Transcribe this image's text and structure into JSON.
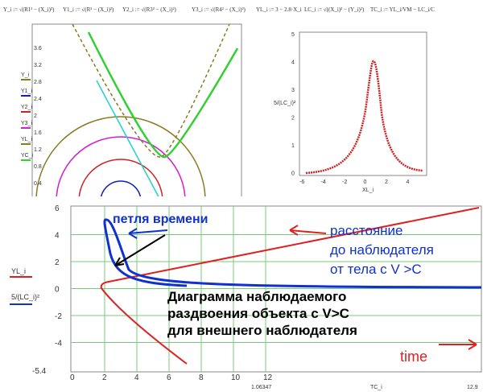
{
  "formulas": [
    "Y_i := √(R1² − (X_i)²)",
    "Y1_i := √(R² − (X_i)²)",
    "Y2_i := √(R3² − (X_i)²)",
    "Y3_i := √(R4² − (X_i)²)",
    "YL_i := 3 − 2.8·X_i",
    "LC_i := √((X_i)² − (Y_i)²)",
    "TC_i := YL_i/VM − LC_i/C"
  ],
  "plot1": {
    "yticks": [
      "3.6",
      "3.2",
      "2.8",
      "2.4",
      "2",
      "1.6",
      "1.2",
      "0.8",
      "0.4"
    ],
    "legend": [
      "Y_i",
      "Y1_i",
      "Y2_i",
      "Y3_i",
      "YL_i",
      "YC_i"
    ]
  },
  "plot2": {
    "ylabel": "5/(LC_i)²",
    "yticks": [
      "5",
      "4",
      "3",
      "2",
      "1",
      "0"
    ],
    "xticks": [
      "-6",
      "-4",
      "-2",
      "0",
      "2",
      "4"
    ],
    "xlabel": "XL_i"
  },
  "plot3": {
    "ylabel1": "YL_i",
    "ylabel2": "5/(LC_i)²",
    "yticks": [
      "6",
      "4",
      "2",
      "0",
      "-2",
      "-4",
      "-5.4"
    ],
    "xticks": [
      "0",
      "2",
      "4",
      "6",
      "8",
      "10",
      "12"
    ],
    "xmin_label": "1.06347",
    "xlabel": "TC_i",
    "xmax_label": "12.9",
    "loop": "петля времени",
    "distance": [
      "расстояние",
      "до наблюдателя",
      "от тела с V >C"
    ],
    "diagram": [
      "Диаграмма наблюдаемого",
      "раздвоения объекта с V>C",
      "для внешнего наблюдателя"
    ],
    "time": "time"
  }
}
